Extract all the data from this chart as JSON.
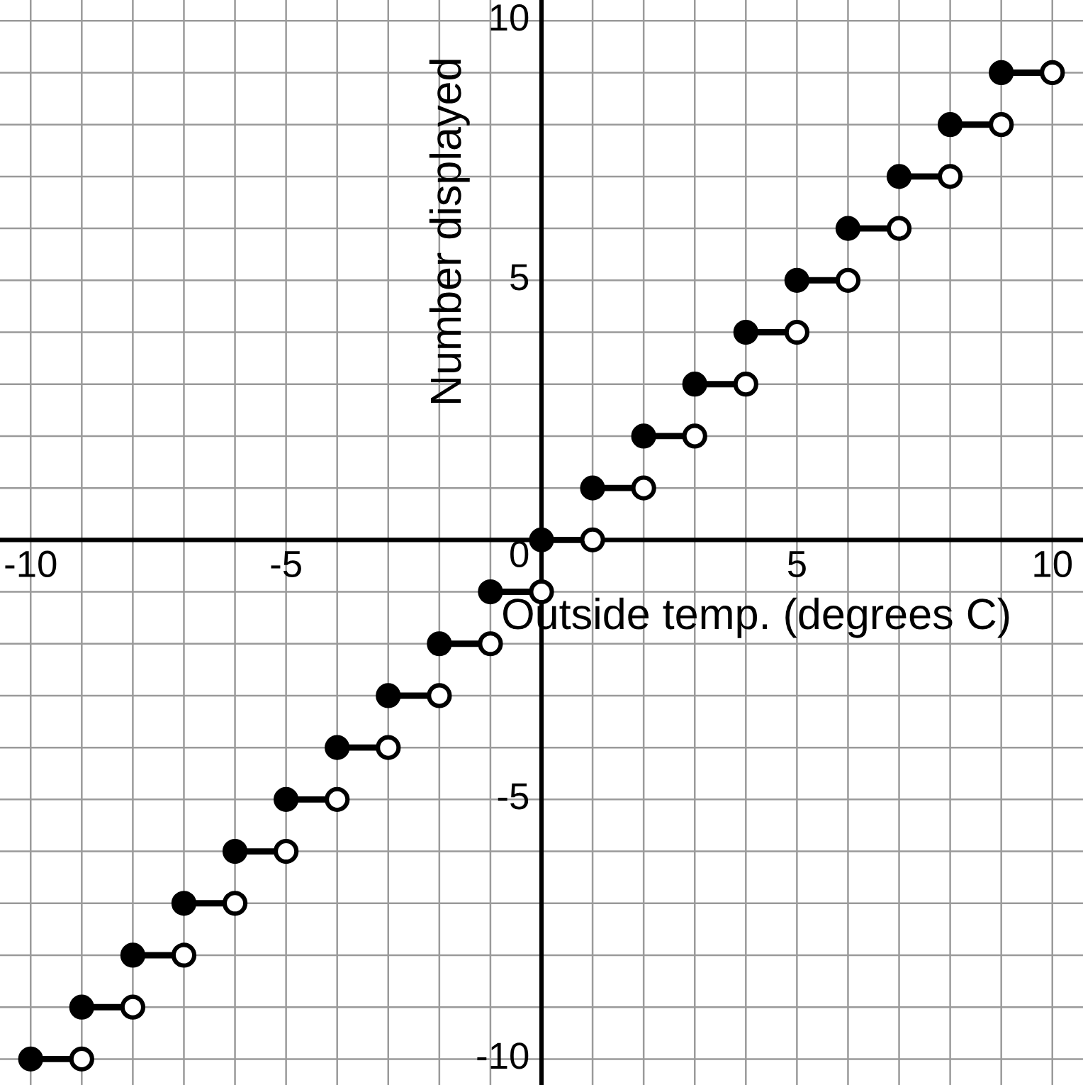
{
  "chart_data": {
    "type": "line",
    "xlabel": "Outside temp. (degrees C)",
    "ylabel": "Number displayed",
    "xlim": [
      -10.6,
      10.6
    ],
    "ylim": [
      -10.5,
      10.4
    ],
    "xticks": [
      {
        "value": -10,
        "label": "-10"
      },
      {
        "value": -9,
        "label": null
      },
      {
        "value": -8,
        "label": null
      },
      {
        "value": -7,
        "label": null
      },
      {
        "value": -6,
        "label": null
      },
      {
        "value": -5,
        "label": "-5"
      },
      {
        "value": -4,
        "label": null
      },
      {
        "value": -3,
        "label": null
      },
      {
        "value": -2,
        "label": null
      },
      {
        "value": -1,
        "label": null
      },
      {
        "value": 0,
        "label": "0"
      },
      {
        "value": 1,
        "label": null
      },
      {
        "value": 2,
        "label": null
      },
      {
        "value": 3,
        "label": null
      },
      {
        "value": 4,
        "label": null
      },
      {
        "value": 5,
        "label": "5"
      },
      {
        "value": 6,
        "label": null
      },
      {
        "value": 7,
        "label": null
      },
      {
        "value": 8,
        "label": null
      },
      {
        "value": 9,
        "label": null
      },
      {
        "value": 10,
        "label": "10"
      }
    ],
    "yticks": [
      {
        "value": -10,
        "label": "-10"
      },
      {
        "value": -9,
        "label": null
      },
      {
        "value": -8,
        "label": null
      },
      {
        "value": -7,
        "label": null
      },
      {
        "value": -6,
        "label": null
      },
      {
        "value": -5,
        "label": "-5"
      },
      {
        "value": -4,
        "label": null
      },
      {
        "value": -3,
        "label": null
      },
      {
        "value": -2,
        "label": null
      },
      {
        "value": -1,
        "label": null
      },
      {
        "value": 0,
        "label": null
      },
      {
        "value": 1,
        "label": null
      },
      {
        "value": 2,
        "label": null
      },
      {
        "value": 3,
        "label": null
      },
      {
        "value": 4,
        "label": null
      },
      {
        "value": 5,
        "label": "5"
      },
      {
        "value": 6,
        "label": null
      },
      {
        "value": 7,
        "label": null
      },
      {
        "value": 8,
        "label": null
      },
      {
        "value": 9,
        "label": null
      },
      {
        "value": 10,
        "label": "10"
      }
    ],
    "grid": true,
    "series": [
      {
        "color": "#000000",
        "x": [
          -10,
          -9,
          null,
          -9,
          -8,
          null,
          -8,
          -7,
          null,
          -7,
          -6,
          null,
          -6,
          -5,
          null,
          -5,
          -4,
          null,
          -4,
          -3,
          null,
          -3,
          -2,
          null,
          -2,
          -1,
          null,
          -1,
          0,
          null,
          0,
          1,
          null,
          1,
          2,
          null,
          2,
          3,
          null,
          3,
          4,
          null,
          4,
          5,
          null,
          5,
          6,
          null,
          6,
          7,
          null,
          7,
          8,
          null,
          8,
          9,
          null,
          9,
          10
        ],
        "values": [
          -10,
          -10,
          null,
          -9,
          -9,
          null,
          -8,
          -8,
          null,
          -7,
          -7,
          null,
          -6,
          -6,
          null,
          -5,
          -5,
          null,
          -4,
          -4,
          null,
          -3,
          -3,
          null,
          -2,
          -2,
          null,
          -1,
          -1,
          null,
          0,
          0,
          null,
          1,
          1,
          null,
          2,
          2,
          null,
          3,
          3,
          null,
          4,
          4,
          null,
          5,
          5,
          null,
          6,
          6,
          null,
          7,
          7,
          null,
          8,
          8,
          null,
          9,
          9
        ]
      },
      {
        "type": "scatter",
        "color": "#000000",
        "marker": "circle",
        "x": [
          -10,
          -9,
          -8,
          -7,
          -6,
          -5,
          -4,
          -3,
          -2,
          -1,
          0,
          1,
          2,
          3,
          4,
          5,
          6,
          7,
          8,
          9
        ],
        "values": [
          -10,
          -9,
          -8,
          -7,
          -6,
          -5,
          -4,
          -3,
          -2,
          -1,
          0,
          1,
          2,
          3,
          4,
          5,
          6,
          7,
          8,
          9
        ]
      },
      {
        "type": "scatter",
        "color": "#ffffff",
        "marker": "circle",
        "x": [
          -9,
          -8,
          -7,
          -6,
          -5,
          -4,
          -3,
          -2,
          -1,
          0,
          1,
          2,
          3,
          4,
          5,
          6,
          7,
          8,
          9,
          10
        ],
        "values": [
          -10,
          -9,
          -8,
          -7,
          -6,
          -5,
          -4,
          -3,
          -2,
          -1,
          0,
          1,
          2,
          3,
          4,
          5,
          6,
          7,
          8,
          9
        ]
      }
    ]
  }
}
